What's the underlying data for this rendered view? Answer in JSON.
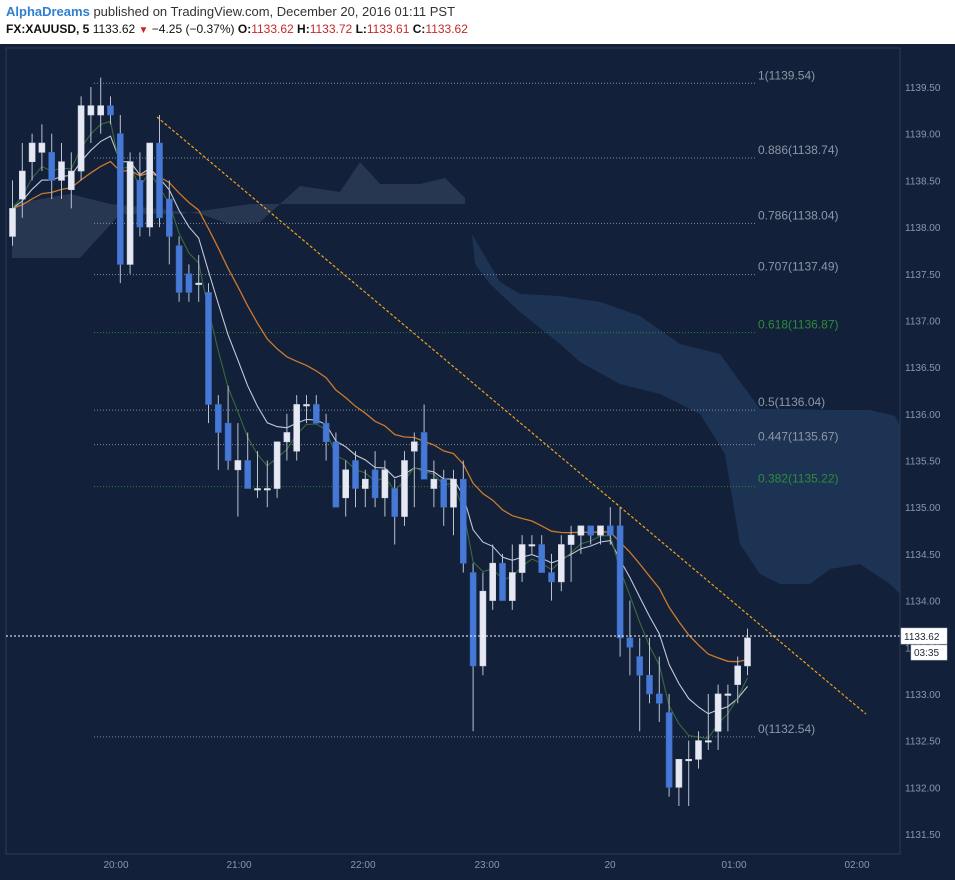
{
  "header": {
    "author": "AlphaDreams",
    "published": "published on TradingView.com, December 20, 2016 01:11 PST",
    "symbol": "FX:XAUUSD, 5",
    "price": "1133.62",
    "change": "−4.25 (−0.37%)",
    "o_label": "O:",
    "o_value": "1133.62",
    "h_label": "H:",
    "h_value": "1133.72",
    "l_label": "L:",
    "l_value": "1133.61",
    "c_label": "C:",
    "c_value": "1133.62"
  },
  "chart_data": {
    "type": "candlestick",
    "title": "FX:XAUUSD, 5",
    "y_ticks": [
      "1139.50",
      "1139.00",
      "1138.50",
      "1138.00",
      "1137.50",
      "1137.00",
      "1136.50",
      "1136.00",
      "1135.50",
      "1135.00",
      "1134.50",
      "1134.00",
      "1133.50",
      "1133.00",
      "1132.50",
      "1132.00",
      "1131.50"
    ],
    "x_ticks": [
      "20:00",
      "21:00",
      "22:00",
      "23:00",
      "20",
      "01:00",
      "02:00"
    ],
    "ylim": [
      1131.25,
      1139.6
    ],
    "last_price": "1133.62",
    "countdown": "03:35",
    "fib_levels": [
      {
        "label": "1(1139.54)",
        "ratio": 1,
        "value": 1139.54,
        "color": "#8d97a5"
      },
      {
        "label": "0.886(1138.74)",
        "ratio": 0.886,
        "value": 1138.74,
        "color": "#8d97a5"
      },
      {
        "label": "0.786(1138.04)",
        "ratio": 0.786,
        "value": 1138.04,
        "color": "#8d97a5"
      },
      {
        "label": "0.707(1137.49)",
        "ratio": 0.707,
        "value": 1137.49,
        "color": "#8d97a5"
      },
      {
        "label": "0.618(1136.87)",
        "ratio": 0.618,
        "value": 1136.87,
        "color": "#2e8b3a"
      },
      {
        "label": "0.5(1136.04)",
        "ratio": 0.5,
        "value": 1136.04,
        "color": "#8d97a5"
      },
      {
        "label": "0.447(1135.67)",
        "ratio": 0.447,
        "value": 1135.67,
        "color": "#8d97a5"
      },
      {
        "label": "0.382(1135.22)",
        "ratio": 0.382,
        "value": 1135.22,
        "color": "#2e8b3a"
      },
      {
        "label": "0(1132.54)",
        "ratio": 0,
        "value": 1132.54,
        "color": "#8d97a5"
      }
    ],
    "candles": [
      {
        "o": 1137.9,
        "h": 1138.5,
        "l": 1137.8,
        "c": 1138.2
      },
      {
        "o": 1138.3,
        "h": 1138.9,
        "l": 1138.1,
        "c": 1138.6
      },
      {
        "o": 1138.7,
        "h": 1139.0,
        "l": 1138.5,
        "c": 1138.9
      },
      {
        "o": 1138.8,
        "h": 1139.1,
        "l": 1138.6,
        "c": 1138.9
      },
      {
        "o": 1138.8,
        "h": 1139.0,
        "l": 1138.3,
        "c": 1138.5
      },
      {
        "o": 1138.5,
        "h": 1138.9,
        "l": 1138.3,
        "c": 1138.7
      },
      {
        "o": 1138.4,
        "h": 1138.8,
        "l": 1138.2,
        "c": 1138.6
      },
      {
        "o": 1138.6,
        "h": 1139.4,
        "l": 1138.5,
        "c": 1139.3
      },
      {
        "o": 1139.2,
        "h": 1139.5,
        "l": 1138.9,
        "c": 1139.3
      },
      {
        "o": 1139.2,
        "h": 1139.6,
        "l": 1139.0,
        "c": 1139.3
      },
      {
        "o": 1139.3,
        "h": 1139.4,
        "l": 1139.1,
        "c": 1139.2
      },
      {
        "o": 1139.0,
        "h": 1139.2,
        "l": 1137.4,
        "c": 1137.6
      },
      {
        "o": 1137.6,
        "h": 1138.8,
        "l": 1137.5,
        "c": 1138.7
      },
      {
        "o": 1138.5,
        "h": 1138.8,
        "l": 1137.9,
        "c": 1138.0
      },
      {
        "o": 1138.0,
        "h": 1138.9,
        "l": 1137.9,
        "c": 1138.9
      },
      {
        "o": 1138.9,
        "h": 1139.2,
        "l": 1138.0,
        "c": 1138.1
      },
      {
        "o": 1138.3,
        "h": 1138.5,
        "l": 1137.6,
        "c": 1137.9
      },
      {
        "o": 1137.8,
        "h": 1137.9,
        "l": 1137.2,
        "c": 1137.3
      },
      {
        "o": 1137.5,
        "h": 1137.6,
        "l": 1137.2,
        "c": 1137.3
      },
      {
        "o": 1137.4,
        "h": 1137.7,
        "l": 1137.2,
        "c": 1137.4
      },
      {
        "o": 1137.3,
        "h": 1137.4,
        "l": 1135.9,
        "c": 1136.1
      },
      {
        "o": 1136.1,
        "h": 1136.2,
        "l": 1135.4,
        "c": 1135.8
      },
      {
        "o": 1135.9,
        "h": 1136.3,
        "l": 1135.4,
        "c": 1135.5
      },
      {
        "o": 1135.4,
        "h": 1135.9,
        "l": 1134.9,
        "c": 1135.5
      },
      {
        "o": 1135.5,
        "h": 1135.8,
        "l": 1135.2,
        "c": 1135.2
      },
      {
        "o": 1135.2,
        "h": 1135.6,
        "l": 1135.1,
        "c": 1135.2
      },
      {
        "o": 1135.2,
        "h": 1135.5,
        "l": 1135.0,
        "c": 1135.2
      },
      {
        "o": 1135.2,
        "h": 1135.7,
        "l": 1135.1,
        "c": 1135.7
      },
      {
        "o": 1135.7,
        "h": 1136.0,
        "l": 1135.5,
        "c": 1135.8
      },
      {
        "o": 1135.6,
        "h": 1136.2,
        "l": 1135.5,
        "c": 1136.1
      },
      {
        "o": 1136.1,
        "h": 1136.2,
        "l": 1135.9,
        "c": 1136.1
      },
      {
        "o": 1136.1,
        "h": 1136.2,
        "l": 1135.9,
        "c": 1135.9
      },
      {
        "o": 1135.9,
        "h": 1136.0,
        "l": 1135.5,
        "c": 1135.7
      },
      {
        "o": 1135.7,
        "h": 1135.8,
        "l": 1135.0,
        "c": 1135.0
      },
      {
        "o": 1135.1,
        "h": 1135.5,
        "l": 1134.9,
        "c": 1135.4
      },
      {
        "o": 1135.5,
        "h": 1135.6,
        "l": 1135.0,
        "c": 1135.2
      },
      {
        "o": 1135.2,
        "h": 1135.4,
        "l": 1135.0,
        "c": 1135.3
      },
      {
        "o": 1135.4,
        "h": 1135.6,
        "l": 1135.0,
        "c": 1135.1
      },
      {
        "o": 1135.1,
        "h": 1135.5,
        "l": 1134.9,
        "c": 1135.4
      },
      {
        "o": 1135.2,
        "h": 1135.3,
        "l": 1134.6,
        "c": 1134.9
      },
      {
        "o": 1134.9,
        "h": 1135.6,
        "l": 1134.8,
        "c": 1135.5
      },
      {
        "o": 1135.6,
        "h": 1135.8,
        "l": 1135.0,
        "c": 1135.7
      },
      {
        "o": 1135.8,
        "h": 1136.1,
        "l": 1135.3,
        "c": 1135.3
      },
      {
        "o": 1135.2,
        "h": 1135.5,
        "l": 1135.0,
        "c": 1135.3
      },
      {
        "o": 1135.3,
        "h": 1135.4,
        "l": 1134.8,
        "c": 1135.0
      },
      {
        "o": 1135.0,
        "h": 1135.4,
        "l": 1134.7,
        "c": 1135.3
      },
      {
        "o": 1135.3,
        "h": 1135.5,
        "l": 1134.3,
        "c": 1134.4
      },
      {
        "o": 1134.3,
        "h": 1134.4,
        "l": 1132.6,
        "c": 1133.3
      },
      {
        "o": 1133.3,
        "h": 1134.3,
        "l": 1133.2,
        "c": 1134.1
      },
      {
        "o": 1134.0,
        "h": 1134.6,
        "l": 1133.9,
        "c": 1134.4
      },
      {
        "o": 1134.4,
        "h": 1134.5,
        "l": 1134.0,
        "c": 1134.0
      },
      {
        "o": 1134.0,
        "h": 1134.6,
        "l": 1133.9,
        "c": 1134.3
      },
      {
        "o": 1134.3,
        "h": 1134.7,
        "l": 1134.2,
        "c": 1134.6
      },
      {
        "o": 1134.6,
        "h": 1134.7,
        "l": 1134.5,
        "c": 1134.6
      },
      {
        "o": 1134.6,
        "h": 1134.7,
        "l": 1134.3,
        "c": 1134.3
      },
      {
        "o": 1134.3,
        "h": 1134.5,
        "l": 1134.0,
        "c": 1134.2
      },
      {
        "o": 1134.2,
        "h": 1134.7,
        "l": 1134.1,
        "c": 1134.6
      },
      {
        "o": 1134.6,
        "h": 1134.8,
        "l": 1134.2,
        "c": 1134.7
      },
      {
        "o": 1134.7,
        "h": 1134.8,
        "l": 1134.5,
        "c": 1134.8
      },
      {
        "o": 1134.8,
        "h": 1134.8,
        "l": 1134.6,
        "c": 1134.7
      },
      {
        "o": 1134.7,
        "h": 1134.8,
        "l": 1134.6,
        "c": 1134.8
      },
      {
        "o": 1134.8,
        "h": 1135.0,
        "l": 1134.6,
        "c": 1134.7
      },
      {
        "o": 1134.8,
        "h": 1135.0,
        "l": 1133.4,
        "c": 1133.6
      },
      {
        "o": 1133.6,
        "h": 1134.0,
        "l": 1133.2,
        "c": 1133.5
      },
      {
        "o": 1133.4,
        "h": 1133.6,
        "l": 1132.6,
        "c": 1133.2
      },
      {
        "o": 1133.2,
        "h": 1133.6,
        "l": 1132.9,
        "c": 1133.0
      },
      {
        "o": 1133.0,
        "h": 1133.4,
        "l": 1132.7,
        "c": 1132.9
      },
      {
        "o": 1132.8,
        "h": 1133.0,
        "l": 1131.9,
        "c": 1132.0
      },
      {
        "o": 1132.0,
        "h": 1132.3,
        "l": 1131.8,
        "c": 1132.3
      },
      {
        "o": 1132.3,
        "h": 1132.5,
        "l": 1131.8,
        "c": 1132.3
      },
      {
        "o": 1132.3,
        "h": 1132.6,
        "l": 1132.2,
        "c": 1132.5
      },
      {
        "o": 1132.5,
        "h": 1133.0,
        "l": 1132.4,
        "c": 1132.5
      },
      {
        "o": 1132.6,
        "h": 1133.1,
        "l": 1132.4,
        "c": 1133.0
      },
      {
        "o": 1133.0,
        "h": 1133.1,
        "l": 1132.6,
        "c": 1133.0
      },
      {
        "o": 1133.1,
        "h": 1133.4,
        "l": 1132.9,
        "c": 1133.3
      },
      {
        "o": 1133.3,
        "h": 1133.7,
        "l": 1133.2,
        "c": 1133.6
      }
    ],
    "colors": {
      "background": "#12203a",
      "up_fill": "#e6e9f3",
      "down_fill": "#4678d6",
      "wick": "#b9c2d3",
      "trendline": "#f0a21c",
      "ma_orange": "#cc7a2a",
      "ma_white": "#c3c9d6",
      "ma_green": "#3a6a3a",
      "cloud": "#1f3556",
      "cloud_light": "#3a4a64",
      "price_line": "#ffffff",
      "axis_text": "#8a97ab"
    }
  }
}
